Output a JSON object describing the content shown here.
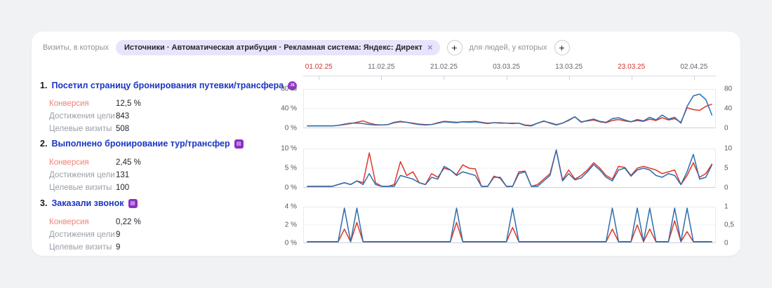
{
  "filters": {
    "visits_label": "Визиты, в которых",
    "chip_text": "Источники · Автоматическая атрибуция · Рекламная система: Яндекс: Директ",
    "chip_close": "×",
    "add_icon": "+",
    "people_label": "для людей, у которых"
  },
  "date_axis": {
    "labels": [
      {
        "text": "01.02.25",
        "highlight": true
      },
      {
        "text": "11.02.25",
        "highlight": false
      },
      {
        "text": "21.02.25",
        "highlight": false
      },
      {
        "text": "03.03.25",
        "highlight": false
      },
      {
        "text": "13.03.25",
        "highlight": false
      },
      {
        "text": "23.03.25",
        "highlight": true
      },
      {
        "text": "02.04.25",
        "highlight": false
      }
    ]
  },
  "goals": [
    {
      "num": "1.",
      "title": "Посетил страницу бронирования путевки/трансфера",
      "badge_glyph": "JS",
      "stats": [
        {
          "label": "Конверсия",
          "value": "12,5 %"
        },
        {
          "label": "Достижения цели",
          "value": "843"
        },
        {
          "label": "Целевые визиты",
          "value": "508"
        }
      ]
    },
    {
      "num": "2.",
      "title": "Выполнено бронирование тур/трансфер",
      "badge_glyph": "▤",
      "stats": [
        {
          "label": "Конверсия",
          "value": "2,45 %"
        },
        {
          "label": "Достижения цели",
          "value": "131"
        },
        {
          "label": "Целевые визиты",
          "value": "100"
        }
      ]
    },
    {
      "num": "3.",
      "title": "Заказали звонок",
      "badge_glyph": "▤",
      "stats": [
        {
          "label": "Конверсия",
          "value": "0,22 %"
        },
        {
          "label": "Достижения цели",
          "value": "9"
        },
        {
          "label": "Целевые визиты",
          "value": "9"
        }
      ]
    }
  ],
  "colors": {
    "red_line": "#e0392e",
    "blue_line": "#2f6fad",
    "accent_label": "#ee8279",
    "goal_link": "#1a35c3",
    "badge_purple": "#8d2fc6",
    "date_highlight": "#d4342c",
    "chip_bg": "#e7e5fb"
  },
  "chart_data": [
    {
      "type": "line",
      "goal": "Посетил страницу бронирования путевки/трансфера",
      "x_range": [
        "30.01.25",
        "05.04.25"
      ],
      "x_tick_labels": [
        "01.02.25",
        "11.02.25",
        "21.02.25",
        "03.03.25",
        "13.03.25",
        "23.03.25",
        "02.04.25"
      ],
      "yaxis_left": [
        "80 %",
        "40 %",
        "0 %"
      ],
      "yaxis_right": [
        "80",
        "40",
        "0"
      ],
      "ymax": 80,
      "grid": true,
      "legend": "none",
      "series": [
        {
          "name": "conversion-red",
          "color": "#e0392e",
          "values": [
            2,
            2,
            2,
            2,
            2,
            3,
            5,
            7,
            10,
            13,
            8,
            5,
            4,
            5,
            9,
            11,
            10,
            8,
            6,
            5,
            5,
            9,
            12,
            11,
            10,
            11,
            11,
            12,
            10,
            8,
            9,
            9,
            8,
            8,
            8,
            4,
            3,
            8,
            12,
            9,
            5,
            8,
            14,
            22,
            11,
            13,
            15,
            11,
            9,
            14,
            16,
            13,
            11,
            14,
            12,
            17,
            14,
            20,
            15,
            18,
            10,
            42,
            38,
            36,
            45,
            50
          ]
        },
        {
          "name": "conversion-blue",
          "color": "#2f6fad",
          "values": [
            2,
            2,
            2,
            2,
            2,
            3,
            6,
            8,
            8,
            7,
            5,
            4,
            4,
            5,
            10,
            12,
            10,
            7,
            5,
            4,
            5,
            8,
            11,
            10,
            9,
            11,
            10,
            11,
            9,
            7,
            9,
            8,
            8,
            7,
            8,
            3,
            2,
            8,
            13,
            8,
            4,
            8,
            15,
            22,
            10,
            14,
            17,
            12,
            10,
            18,
            20,
            15,
            11,
            16,
            13,
            21,
            15,
            26,
            17,
            21,
            8,
            45,
            68,
            72,
            60,
            25
          ]
        }
      ]
    },
    {
      "type": "line",
      "goal": "Выполнено бронирование тур/трансфер",
      "x_range": [
        "30.01.25",
        "05.04.25"
      ],
      "x_tick_labels": [
        "01.02.25",
        "11.02.25",
        "21.02.25",
        "03.03.25",
        "13.03.25",
        "23.03.25",
        "02.04.25"
      ],
      "yaxis_left": [
        "10 %",
        "5 %",
        "0 %"
      ],
      "yaxis_right": [
        "10",
        "5",
        "0"
      ],
      "ymax": 10,
      "grid": true,
      "legend": "none",
      "series": [
        {
          "name": "conversion-red",
          "color": "#e0392e",
          "values": [
            0,
            0,
            0,
            0,
            0,
            0.5,
            1,
            0.5,
            1.5,
            1,
            9.2,
            1,
            0,
            0,
            0.5,
            6.8,
            3,
            4,
            1,
            0.5,
            3.5,
            2.5,
            5,
            4.5,
            3.2,
            5.9,
            5,
            4.8,
            0,
            0,
            2.8,
            2.2,
            0,
            0,
            4,
            4.2,
            0,
            0.5,
            2,
            3.5,
            10,
            1.8,
            4.5,
            2,
            3,
            4.5,
            6.5,
            5,
            3,
            2,
            5.5,
            5.2,
            3,
            5,
            5.5,
            5,
            4.5,
            3.5,
            4,
            4.5,
            0.5,
            3,
            6.5,
            2.5,
            3.5,
            6.2
          ]
        },
        {
          "name": "conversion-blue",
          "color": "#2f6fad",
          "values": [
            0,
            0,
            0,
            0,
            0,
            0.5,
            1,
            0.5,
            1.5,
            0.5,
            3.5,
            0.5,
            0,
            0,
            0,
            3,
            2.5,
            2,
            1,
            0.5,
            2.5,
            2,
            5.5,
            4.5,
            3,
            4,
            3.5,
            3,
            0,
            0,
            2.5,
            2.5,
            0,
            0,
            3.5,
            4,
            0,
            0,
            1.5,
            3,
            10,
            1.5,
            3.5,
            1.8,
            2.3,
            4,
            6,
            4.5,
            2.5,
            1.5,
            4.5,
            5,
            2.8,
            4.5,
            5,
            4.5,
            3,
            2.5,
            3.5,
            3,
            0.5,
            4,
            8.8,
            2,
            2.5,
            6
          ]
        }
      ]
    },
    {
      "type": "line",
      "goal": "Заказали звонок",
      "x_range": [
        "30.01.25",
        "05.04.25"
      ],
      "x_tick_labels": [
        "01.02.25",
        "11.02.25",
        "21.02.25",
        "03.03.25",
        "13.03.25",
        "23.03.25",
        "02.04.25"
      ],
      "yaxis_left": [
        "4 %",
        "2 %",
        "0 %"
      ],
      "yaxis_right": [
        "1",
        "0,5",
        "0"
      ],
      "ymax": 4,
      "grid": true,
      "legend": "none",
      "series": [
        {
          "name": "conversion-red",
          "color": "#e0392e",
          "values": [
            0,
            0,
            0,
            0,
            0,
            0,
            1.5,
            0,
            2.3,
            0,
            0,
            0,
            0,
            0,
            0,
            0,
            0,
            0,
            0,
            0,
            0,
            0,
            0,
            0,
            2.3,
            0,
            0,
            0,
            0,
            0,
            0,
            0,
            0,
            1.7,
            0,
            0,
            0,
            0,
            0,
            0,
            0,
            0,
            0,
            0,
            0,
            0,
            0,
            0,
            0,
            1.5,
            0,
            0,
            0,
            2,
            0,
            1.5,
            0,
            0,
            0,
            2.5,
            0,
            1.2,
            0,
            0,
            0,
            0
          ]
        },
        {
          "name": "conversion-blue",
          "color": "#2f6fad",
          "values": [
            0,
            0,
            0,
            0,
            0,
            0,
            4,
            0,
            4,
            0,
            0,
            0,
            0,
            0,
            0,
            0,
            0,
            0,
            0,
            0,
            0,
            0,
            0,
            0,
            4,
            0,
            0,
            0,
            0,
            0,
            0,
            0,
            0,
            4,
            0,
            0,
            0,
            0,
            0,
            0,
            0,
            0,
            0,
            0,
            0,
            0,
            0,
            0,
            0,
            4,
            0,
            0,
            0,
            4,
            0,
            4,
            0,
            0,
            0,
            4,
            0,
            4,
            0,
            0,
            0,
            0
          ]
        }
      ]
    }
  ]
}
